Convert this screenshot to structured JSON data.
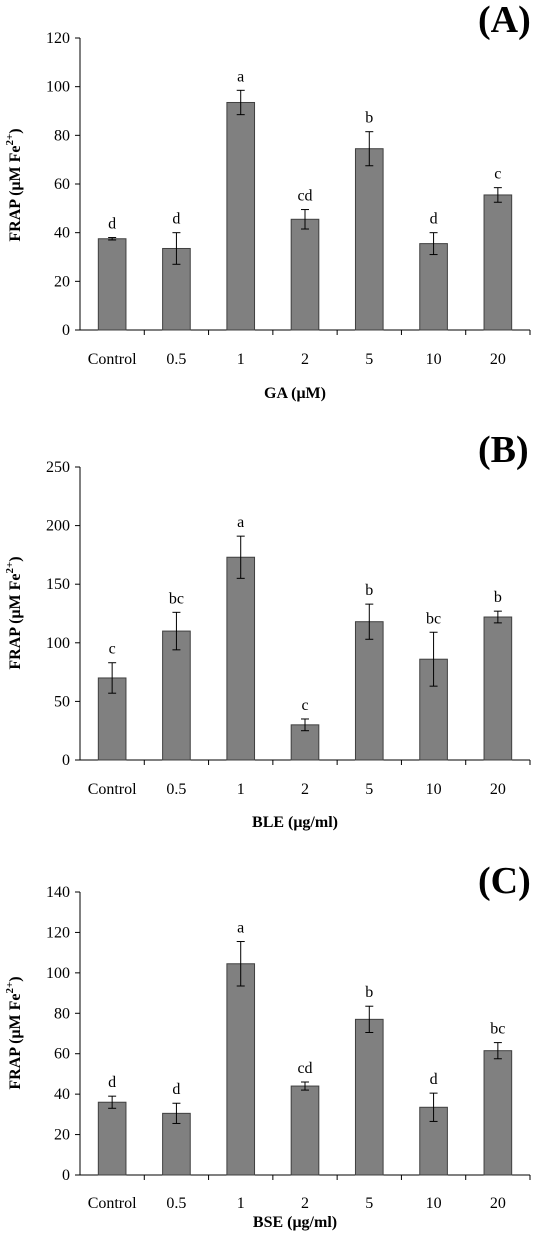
{
  "chart_data": [
    {
      "type": "bar",
      "panel_label": "(A)",
      "categories": [
        "Control",
        "0.5",
        "1",
        "2",
        "5",
        "10",
        "20"
      ],
      "values": [
        37.5,
        33.5,
        93.5,
        45.5,
        74.5,
        35.5,
        55.5
      ],
      "errors": [
        0.5,
        6.5,
        5.0,
        4.0,
        7.0,
        4.5,
        3.0
      ],
      "letters": [
        "d",
        "d",
        "a",
        "cd",
        "b",
        "d",
        "c"
      ],
      "ylabel_main": "FRAP (μM Fe",
      "ylabel_sup": "2+",
      "ylabel_end": ")",
      "xlabel": "GA (μM)",
      "ylim": [
        0,
        120
      ],
      "yticks": [
        "0",
        "20",
        "40",
        "60",
        "80",
        "100",
        "120"
      ],
      "bar_color": "#808080"
    },
    {
      "type": "bar",
      "panel_label": "(B)",
      "categories": [
        "Control",
        "0.5",
        "1",
        "2",
        "5",
        "10",
        "20"
      ],
      "values": [
        70,
        110,
        173,
        30,
        118,
        86,
        122
      ],
      "errors": [
        13,
        16,
        18,
        5,
        15,
        23,
        5
      ],
      "letters": [
        "c",
        "bc",
        "a",
        "c",
        "b",
        "bc",
        "b"
      ],
      "ylabel_main": "FRAP (μM Fe",
      "ylabel_sup": "2+",
      "ylabel_end": ")",
      "xlabel": "BLE (μg/ml)",
      "ylim": [
        0,
        250
      ],
      "yticks": [
        "0",
        "50",
        "100",
        "150",
        "200",
        "250"
      ],
      "bar_color": "#808080"
    },
    {
      "type": "bar",
      "panel_label": "(C)",
      "categories": [
        "Control",
        "0.5",
        "1",
        "2",
        "5",
        "10",
        "20"
      ],
      "values": [
        36,
        30.5,
        104.5,
        44,
        77,
        33.5,
        61.5
      ],
      "errors": [
        3,
        5,
        11,
        2,
        6.5,
        7,
        4
      ],
      "letters": [
        "d",
        "d",
        "a",
        "cd",
        "b",
        "d",
        "bc"
      ],
      "ylabel_main": "FRAP (μM Fe",
      "ylabel_sup": "2+",
      "ylabel_end": ")",
      "xlabel": "BSE (μg/ml)",
      "ylim": [
        0,
        140
      ],
      "yticks": [
        "0",
        "20",
        "40",
        "60",
        "80",
        "100",
        "120",
        "140"
      ],
      "bar_color": "#808080"
    }
  ]
}
